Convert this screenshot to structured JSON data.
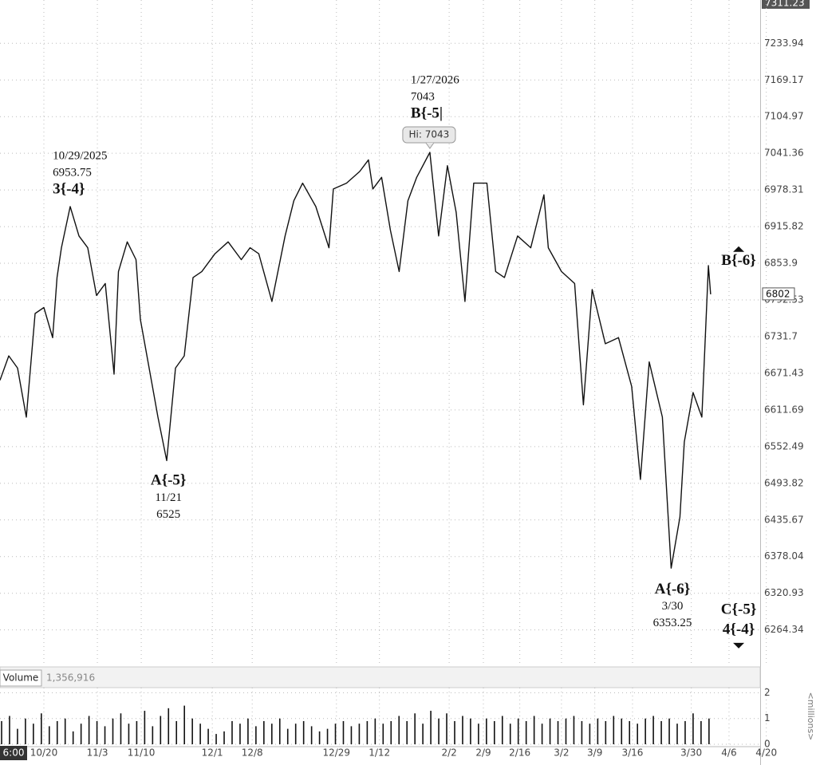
{
  "chart_data": [
    {
      "type": "line",
      "series": [
        {
          "name": "Price",
          "color": "#111111",
          "x": [
            0,
            2,
            4,
            6,
            8,
            10,
            12,
            13,
            14,
            16,
            18,
            20,
            22,
            24,
            26,
            27,
            29,
            31,
            32,
            35,
            36,
            38,
            40,
            42,
            44,
            46,
            49,
            52,
            55,
            57,
            59,
            62,
            65,
            67,
            69,
            72,
            75,
            76,
            79,
            82,
            84,
            85,
            87,
            89,
            91,
            93,
            95,
            98,
            100,
            102,
            104,
            106,
            108,
            111,
            113,
            115,
            118,
            121,
            124,
            125,
            128,
            131,
            133,
            135,
            138,
            141,
            144,
            146,
            148,
            151,
            153,
            155,
            156,
            158,
            160,
            161.5,
            162
          ],
          "values": [
            6660,
            6700,
            6680,
            6600,
            6770,
            6780,
            6730,
            6830,
            6880,
            6950,
            6900,
            6880,
            6800,
            6820,
            6670,
            6840,
            6890,
            6860,
            6760,
            6640,
            6600,
            6530,
            6680,
            6700,
            6830,
            6840,
            6870,
            6890,
            6860,
            6880,
            6870,
            6790,
            6900,
            6960,
            6990,
            6950,
            6880,
            6980,
            6990,
            7010,
            7030,
            6980,
            7000,
            6910,
            6840,
            6960,
            7000,
            7043,
            6900,
            7020,
            6940,
            6790,
            6990,
            6990,
            6840,
            6830,
            6900,
            6880,
            6970,
            6880,
            6840,
            6820,
            6620,
            6810,
            6720,
            6730,
            6650,
            6500,
            6690,
            6600,
            6360,
            6440,
            6560,
            6640,
            6600,
            6850,
            6802
          ]
        }
      ],
      "xlim": [
        0,
        173.3
      ],
      "xticks": [
        {
          "value": 0,
          "label": "6:00"
        },
        {
          "value": 10,
          "label": "10/20"
        },
        {
          "value": 22.2,
          "label": "11/3"
        },
        {
          "value": 32.2,
          "label": "11/10"
        },
        {
          "value": 48.4,
          "label": "12/1"
        },
        {
          "value": 57.5,
          "label": "12/8"
        },
        {
          "value": 76.7,
          "label": "12/29"
        },
        {
          "value": 86.5,
          "label": "1/12"
        },
        {
          "value": 102.4,
          "label": "2/2"
        },
        {
          "value": 110.2,
          "label": "2/9"
        },
        {
          "value": 118.5,
          "label": "2/16"
        },
        {
          "value": 128,
          "label": "3/2"
        },
        {
          "value": 135.6,
          "label": "3/9"
        },
        {
          "value": 144.2,
          "label": "3/16"
        },
        {
          "value": 157.6,
          "label": "3/30"
        },
        {
          "value": 166.2,
          "label": "4/6"
        },
        {
          "value": 174.7,
          "label": "4/20"
        }
      ],
      "ylim": [
        6209,
        7311.23
      ],
      "yticks": [
        7233.94,
        7169.17,
        7104.97,
        7041.36,
        6978.31,
        6915.82,
        6853.9,
        6792.53,
        6731.7,
        6671.43,
        6611.69,
        6552.49,
        6493.82,
        6435.67,
        6378.04,
        6320.93,
        6264.34
      ],
      "log_scale": true,
      "grid": true,
      "last": 6802,
      "high": {
        "value": 7043,
        "label": "Hi: 7043",
        "x": 98
      },
      "annotations": [
        {
          "lines": [
            "10/29/2025",
            "6953.75",
            "3{-4}"
          ],
          "x": 16.4,
          "y": 6953.75,
          "place": "above"
        },
        {
          "lines": [
            "1/27/2026",
            "7043",
            "B{-5|"
          ],
          "x": 98,
          "y": 7043,
          "place": "above"
        },
        {
          "lines": [
            "A{-5}",
            "11/21",
            "6525"
          ],
          "x": 38.4,
          "y": 6525,
          "place": "below"
        },
        {
          "lines": [
            "A{-6}",
            "3/30",
            "6353.25"
          ],
          "x": 153.3,
          "y": 6353.25,
          "place": "below"
        },
        {
          "lines": [
            "B{-6}"
          ],
          "x": 168.4,
          "y": 6857,
          "place": "up"
        },
        {
          "lines": [
            "C{-5}",
            "4{-4}"
          ],
          "x": 168.4,
          "y": 6264,
          "place": "down"
        }
      ]
    },
    {
      "type": "bar",
      "title": "Volume",
      "color": "#111111",
      "last": {
        "value": 1356916,
        "label": "1,356,916"
      },
      "ylabel": "<millions>",
      "ylim": [
        0,
        2.2
      ],
      "yticks": [
        0,
        1,
        2
      ],
      "values": [
        0.9,
        1.1,
        0.6,
        1.0,
        0.8,
        1.2,
        0.7,
        0.9,
        1.0,
        0.5,
        0.8,
        1.1,
        0.9,
        0.7,
        1.0,
        1.2,
        0.8,
        0.9,
        1.3,
        0.7,
        1.1,
        1.4,
        0.9,
        1.5,
        1.0,
        0.8,
        0.6,
        0.4,
        0.5,
        0.9,
        0.8,
        1.0,
        0.7,
        0.9,
        0.8,
        1.0,
        0.6,
        0.8,
        0.9,
        0.7,
        0.5,
        0.6,
        0.8,
        0.9,
        0.7,
        0.8,
        0.9,
        1.0,
        0.8,
        0.9,
        1.1,
        0.9,
        1.2,
        0.8,
        1.3,
        1.0,
        1.2,
        0.9,
        1.1,
        1.0,
        0.8,
        1.0,
        0.9,
        1.1,
        0.8,
        1.0,
        0.9,
        1.1,
        0.8,
        1.0,
        0.9,
        1.0,
        1.1,
        0.9,
        0.8,
        1.0,
        0.9,
        1.1,
        1.0,
        0.9,
        0.8,
        1.0,
        1.1,
        0.9,
        1.0,
        0.8,
        0.9,
        1.2,
        0.9,
        1.0
      ]
    }
  ]
}
